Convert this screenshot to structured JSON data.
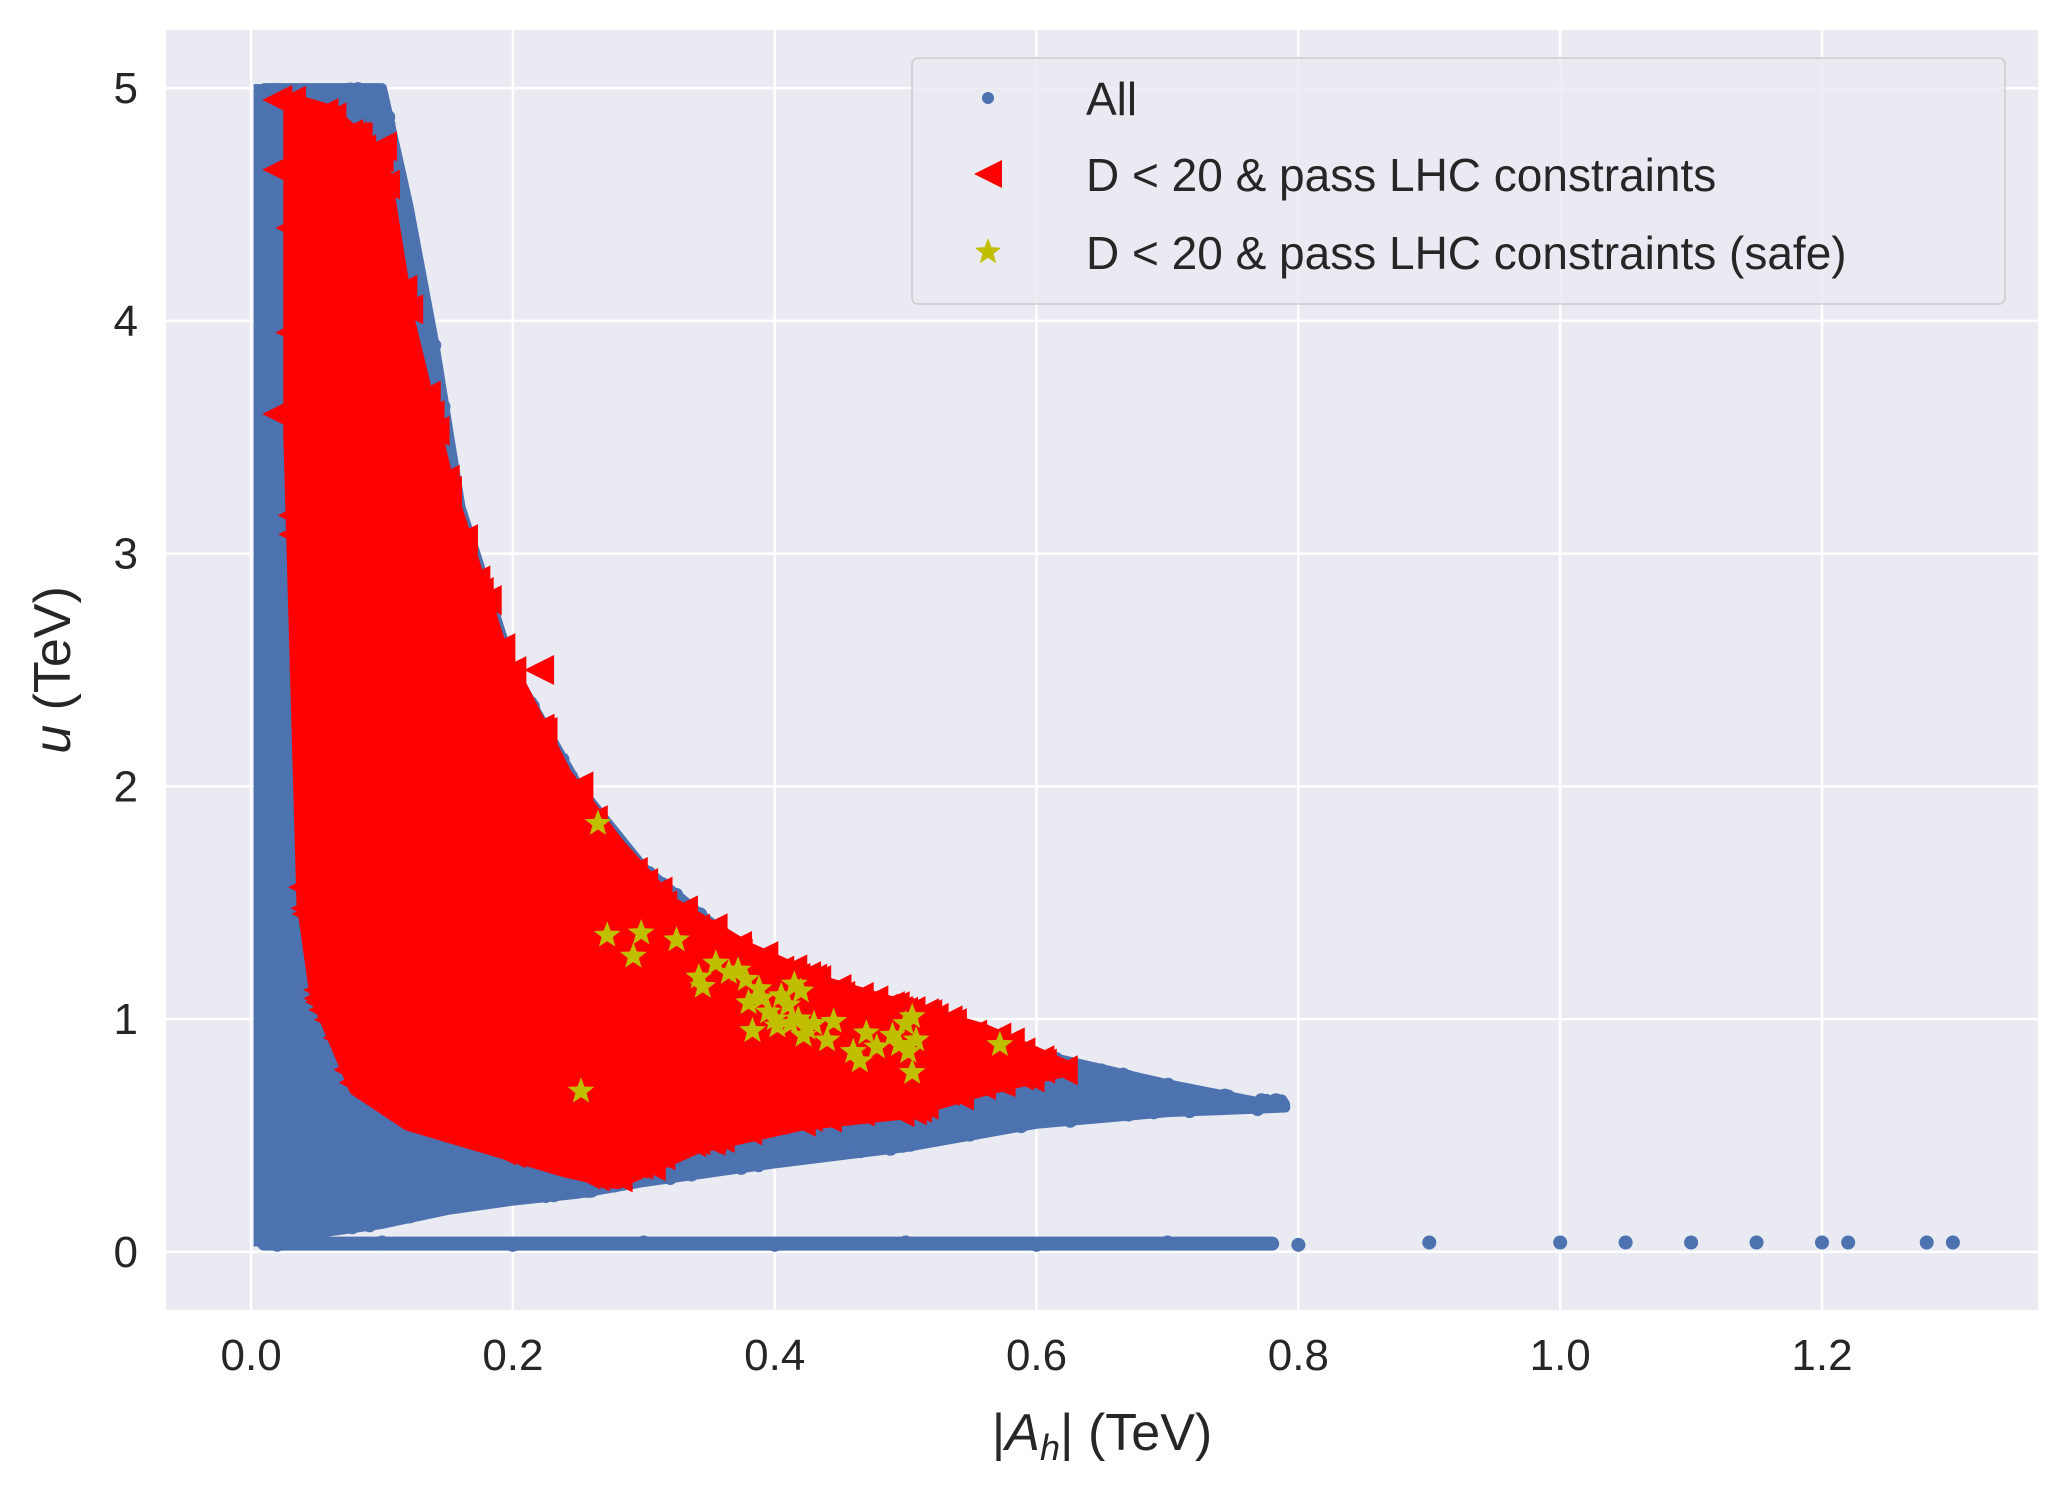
{
  "chart_data": {
    "type": "scatter",
    "title": "",
    "xlabel": {
      "pre": "|",
      "var": "A",
      "sub": "h",
      "post": "| (TeV)"
    },
    "ylabel": {
      "var": "u",
      "post": " (TeV)"
    },
    "xlim": [
      -0.065,
      1.365
    ],
    "ylim": [
      -0.25,
      5.25
    ],
    "xticks": [
      0.0,
      0.2,
      0.4,
      0.6,
      0.8,
      1.0,
      1.2
    ],
    "xtick_labels": [
      "0.0",
      "0.2",
      "0.4",
      "0.6",
      "0.8",
      "1.0",
      "1.2"
    ],
    "yticks": [
      0,
      1,
      2,
      3,
      4,
      5
    ],
    "ytick_labels": [
      "0",
      "1",
      "2",
      "3",
      "4",
      "5"
    ],
    "grid": true,
    "background": "#EAEAF2",
    "legend_position": "top-right",
    "series": [
      {
        "name": "All",
        "marker": "dot",
        "color": "#4C72B0",
        "region_description": "dense band bounded above by u*|A_h| ≈ 0.5, filling 0.01<=|A_h|<=0.79 and 0.05<=u<=5; plus tail at u≈0.03 out to |A_h|≈1.3",
        "upper_envelope": [
          [
            0.01,
            5.0
          ],
          [
            0.1,
            5.0
          ],
          [
            0.12,
            4.5
          ],
          [
            0.14,
            3.9
          ],
          [
            0.16,
            3.2
          ],
          [
            0.2,
            2.5
          ],
          [
            0.25,
            2.0
          ],
          [
            0.3,
            1.65
          ],
          [
            0.35,
            1.42
          ],
          [
            0.4,
            1.22
          ],
          [
            0.45,
            1.08
          ],
          [
            0.5,
            0.98
          ],
          [
            0.55,
            0.9
          ],
          [
            0.6,
            0.85
          ],
          [
            0.7,
            0.72
          ],
          [
            0.79,
            0.62
          ]
        ],
        "lower_envelope": [
          [
            0.01,
            0.05
          ],
          [
            0.05,
            0.08
          ],
          [
            0.1,
            0.12
          ],
          [
            0.15,
            0.18
          ],
          [
            0.2,
            0.22
          ],
          [
            0.25,
            0.25
          ],
          [
            0.3,
            0.3
          ],
          [
            0.4,
            0.38
          ],
          [
            0.5,
            0.45
          ],
          [
            0.6,
            0.55
          ],
          [
            0.7,
            0.6
          ],
          [
            0.79,
            0.62
          ]
        ],
        "tail_points": [
          [
            0.02,
            0.03
          ],
          [
            0.1,
            0.04
          ],
          [
            0.2,
            0.03
          ],
          [
            0.3,
            0.04
          ],
          [
            0.4,
            0.03
          ],
          [
            0.5,
            0.04
          ],
          [
            0.6,
            0.03
          ],
          [
            0.7,
            0.04
          ],
          [
            0.8,
            0.03
          ],
          [
            0.9,
            0.04
          ],
          [
            1.0,
            0.04
          ],
          [
            1.05,
            0.04
          ],
          [
            1.1,
            0.04
          ],
          [
            1.15,
            0.04
          ],
          [
            1.2,
            0.04
          ],
          [
            1.22,
            0.04
          ],
          [
            1.28,
            0.04
          ],
          [
            1.3,
            0.04
          ]
        ]
      },
      {
        "name": "D < 20 & pass LHC constraints",
        "marker": "triangle-left",
        "color": "#FF0000",
        "region_description": "dense red region inside the blue band",
        "upper_envelope": [
          [
            0.03,
            4.95
          ],
          [
            0.06,
            4.9
          ],
          [
            0.1,
            4.7
          ],
          [
            0.12,
            4.0
          ],
          [
            0.15,
            3.3
          ],
          [
            0.19,
            2.6
          ],
          [
            0.24,
            2.05
          ],
          [
            0.28,
            1.75
          ],
          [
            0.32,
            1.5
          ],
          [
            0.38,
            1.3
          ],
          [
            0.44,
            1.15
          ],
          [
            0.5,
            1.05
          ],
          [
            0.56,
            0.95
          ],
          [
            0.62,
            0.8
          ]
        ],
        "lower_envelope": [
          [
            0.03,
            3.5
          ],
          [
            0.04,
            1.5
          ],
          [
            0.05,
            1.1
          ],
          [
            0.08,
            0.7
          ],
          [
            0.12,
            0.55
          ],
          [
            0.18,
            0.45
          ],
          [
            0.24,
            0.35
          ],
          [
            0.28,
            0.3
          ],
          [
            0.34,
            0.45
          ],
          [
            0.42,
            0.55
          ],
          [
            0.5,
            0.6
          ],
          [
            0.56,
            0.7
          ],
          [
            0.62,
            0.78
          ]
        ],
        "points": [
          [
            0.02,
            4.95
          ],
          [
            0.05,
            4.85
          ],
          [
            0.08,
            4.75
          ],
          [
            0.1,
            4.75
          ],
          [
            0.02,
            4.65
          ],
          [
            0.04,
            4.6
          ],
          [
            0.09,
            4.55
          ],
          [
            0.03,
            4.4
          ],
          [
            0.06,
            4.4
          ],
          [
            0.1,
            4.4
          ],
          [
            0.05,
            4.2
          ],
          [
            0.08,
            4.2
          ],
          [
            0.04,
            4.15
          ],
          [
            0.07,
            4.15
          ],
          [
            0.12,
            4.05
          ],
          [
            0.03,
            3.95
          ],
          [
            0.06,
            3.95
          ],
          [
            0.09,
            3.85
          ],
          [
            0.04,
            3.7
          ],
          [
            0.08,
            3.75
          ],
          [
            0.02,
            3.6
          ],
          [
            0.05,
            3.5
          ],
          [
            0.1,
            3.5
          ],
          [
            0.12,
            3.2
          ],
          [
            0.15,
            3.1
          ],
          [
            0.18,
            2.8
          ],
          [
            0.04,
            2.5
          ],
          [
            0.22,
            2.5
          ],
          [
            0.06,
            2.2
          ],
          [
            0.12,
            2.3
          ],
          [
            0.25,
            2.0
          ],
          [
            0.3,
            1.5
          ],
          [
            0.36,
            1.3
          ],
          [
            0.45,
            1.1
          ],
          [
            0.5,
            0.95
          ],
          [
            0.55,
            0.9
          ],
          [
            0.6,
            0.8
          ],
          [
            0.62,
            0.78
          ],
          [
            0.28,
            0.32
          ],
          [
            0.3,
            0.45
          ],
          [
            0.15,
            1.8
          ]
        ]
      },
      {
        "name": "D < 20 & pass LHC constraints (safe)",
        "marker": "star",
        "color": "#BFBF00",
        "points": [
          [
            0.265,
            1.84
          ],
          [
            0.272,
            1.36
          ],
          [
            0.298,
            1.37
          ],
          [
            0.292,
            1.27
          ],
          [
            0.325,
            1.34
          ],
          [
            0.342,
            1.18
          ],
          [
            0.345,
            1.14
          ],
          [
            0.355,
            1.24
          ],
          [
            0.365,
            1.2
          ],
          [
            0.372,
            1.21
          ],
          [
            0.378,
            1.17
          ],
          [
            0.38,
            1.07
          ],
          [
            0.383,
            0.95
          ],
          [
            0.388,
            1.13
          ],
          [
            0.39,
            1.09
          ],
          [
            0.395,
            1.03
          ],
          [
            0.4,
            1.0
          ],
          [
            0.402,
            0.97
          ],
          [
            0.405,
            1.1
          ],
          [
            0.41,
            1.06
          ],
          [
            0.412,
            0.98
          ],
          [
            0.415,
            1.15
          ],
          [
            0.418,
            1.0
          ],
          [
            0.42,
            1.12
          ],
          [
            0.422,
            0.93
          ],
          [
            0.425,
            0.96
          ],
          [
            0.43,
            0.98
          ],
          [
            0.44,
            0.91
          ],
          [
            0.445,
            0.99
          ],
          [
            0.46,
            0.86
          ],
          [
            0.465,
            0.82
          ],
          [
            0.47,
            0.94
          ],
          [
            0.478,
            0.88
          ],
          [
            0.49,
            0.93
          ],
          [
            0.495,
            0.89
          ],
          [
            0.5,
            0.98
          ],
          [
            0.502,
            0.86
          ],
          [
            0.505,
            1.01
          ],
          [
            0.508,
            0.91
          ],
          [
            0.505,
            0.77
          ],
          [
            0.572,
            0.89
          ],
          [
            0.252,
            0.69
          ]
        ]
      }
    ]
  }
}
